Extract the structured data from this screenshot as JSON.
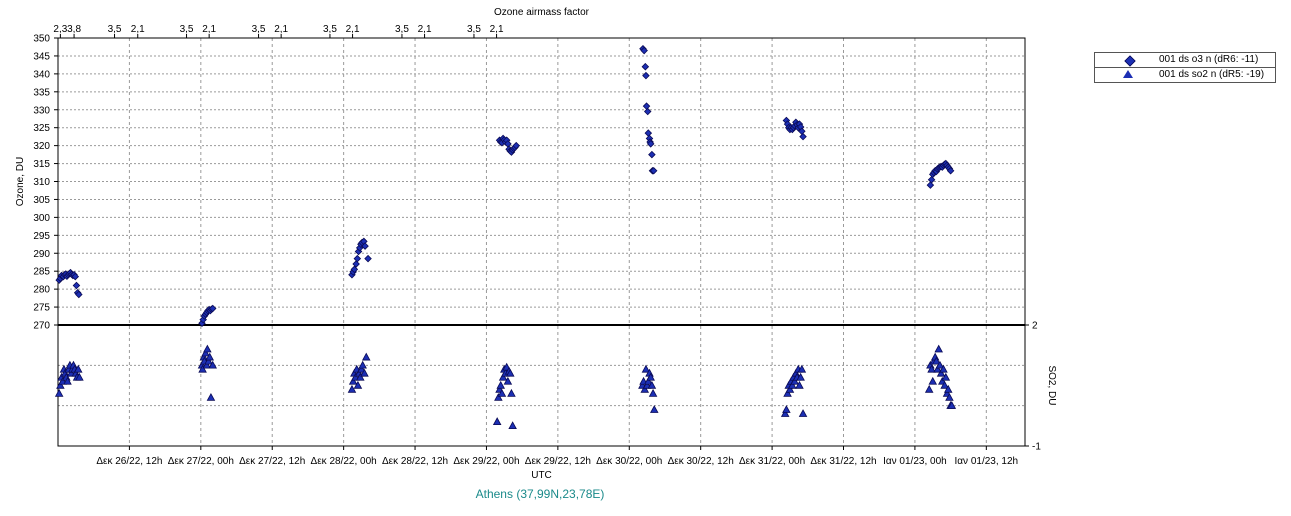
{
  "chart_data": [
    {
      "type": "scatter",
      "title": "Ozone airmass factor",
      "xlabel": "UTC",
      "ylabel": "Ozone, DU",
      "ylim": [
        270,
        350
      ],
      "yticks": [
        270,
        275,
        280,
        285,
        290,
        295,
        300,
        305,
        310,
        315,
        320,
        325,
        330,
        335,
        340,
        345,
        350
      ],
      "xticks": [
        "Δεκ 26/22, 12h",
        "Δεκ 27/22, 00h",
        "Δεκ 27/22, 12h",
        "Δεκ 28/22, 00h",
        "Δεκ 28/22, 12h",
        "Δεκ 29/22, 00h",
        "Δεκ 29/22, 12h",
        "Δεκ 30/22, 00h",
        "Δεκ 30/22, 12h",
        "Δεκ 31/22, 00h",
        "Δεκ 31/22, 12h",
        "Ιαν 01/23, 00h",
        "Ιαν 01/23, 12h"
      ],
      "xtick_hours": [
        12,
        24,
        36,
        48,
        60,
        72,
        84,
        96,
        108,
        120,
        132,
        144,
        156
      ],
      "top_axis": [
        {
          "hours": 0.4,
          "label": "2,3"
        },
        {
          "hours": 2.7,
          "label": "3,8"
        },
        {
          "hours": 9.5,
          "label": "3,5"
        },
        {
          "hours": 13.4,
          "label": "2,1"
        },
        {
          "hours": 21.6,
          "label": "3,5"
        },
        {
          "hours": 25.4,
          "label": "2,1"
        },
        {
          "hours": 33.7,
          "label": "3,5"
        },
        {
          "hours": 37.5,
          "label": "2,1"
        },
        {
          "hours": 45.7,
          "label": "3,5"
        },
        {
          "hours": 49.5,
          "label": "2,1"
        },
        {
          "hours": 57.8,
          "label": "3,5"
        },
        {
          "hours": 61.6,
          "label": "2,1"
        },
        {
          "hours": 69.9,
          "label": "3,5"
        },
        {
          "hours": 73.7,
          "label": "2,1"
        }
      ],
      "grid": true,
      "legend_position": "right",
      "series": [
        {
          "name": "001 ds o3  n (dR6: -11)",
          "marker": "diamond",
          "color": "#1c2fb4",
          "x_hours": [
            0.2,
            0.4,
            0.6,
            0.9,
            1.1,
            1.3,
            1.5,
            1.7,
            1.9,
            2.1,
            2.3,
            2.5,
            2.7,
            2.9,
            3.1,
            3.3,
            3.5,
            24.2,
            24.4,
            24.6,
            24.8,
            25.0,
            25.2,
            25.4,
            25.6,
            25.8,
            26.0,
            49.4,
            49.6,
            49.8,
            50.1,
            50.3,
            50.5,
            50.7,
            50.9,
            51.1,
            51.4,
            51.6,
            52.1,
            74.2,
            74.4,
            74.6,
            74.8,
            75.0,
            75.2,
            75.4,
            75.6,
            75.8,
            76.0,
            76.2,
            76.4,
            76.6,
            76.8,
            77.0,
            98.3,
            98.5,
            98.7,
            98.8,
            98.9,
            99.1,
            99.2,
            99.4,
            99.5,
            99.6,
            99.8,
            99.9,
            100.1,
            122.4,
            122.6,
            122.8,
            123.0,
            123.2,
            123.4,
            123.6,
            123.8,
            124.0,
            124.2,
            124.4,
            124.6,
            124.8,
            125.0,
            125.2,
            146.6,
            146.8,
            147.0,
            147.2,
            147.4,
            147.6,
            147.8,
            148.0,
            148.2,
            148.4,
            148.6,
            148.8,
            149.0,
            149.2,
            149.4,
            149.6,
            149.8,
            150.0
          ],
          "values": [
            282.5,
            283.0,
            283.8,
            283.5,
            284.0,
            284.2,
            283.6,
            284.0,
            284.3,
            284.6,
            284.1,
            283.8,
            284.0,
            283.5,
            281.0,
            279.0,
            278.5,
            270.5,
            271.5,
            272.5,
            273.0,
            273.5,
            274.0,
            274.3,
            274.0,
            274.4,
            274.6,
            284.0,
            284.8,
            285.5,
            287.0,
            288.5,
            290.5,
            291.5,
            292.5,
            293.0,
            293.3,
            292.0,
            288.5,
            321.5,
            321.0,
            320.8,
            322.0,
            321.6,
            321.0,
            321.5,
            320.5,
            319.0,
            318.5,
            318.2,
            318.8,
            319.2,
            319.5,
            320.0,
            347.0,
            346.5,
            342.0,
            339.5,
            331.0,
            329.5,
            323.5,
            322.0,
            321.0,
            320.5,
            317.5,
            313.0,
            313.0,
            327.0,
            326.0,
            325.0,
            324.5,
            325.0,
            324.5,
            325.0,
            325.5,
            326.5,
            325.8,
            325.0,
            326.0,
            325.2,
            324.0,
            322.5,
            309.0,
            310.5,
            312.0,
            312.5,
            313.0,
            312.8,
            313.5,
            313.8,
            314.0,
            314.2,
            314.0,
            314.5,
            314.8,
            315.0,
            314.5,
            314.0,
            313.6,
            313.0
          ]
        }
      ]
    },
    {
      "type": "scatter",
      "xlabel": "UTC",
      "ylabel": "SO2, DU",
      "ylim": [
        -1,
        2
      ],
      "yticks": [
        -1,
        2
      ],
      "grid": true,
      "series": [
        {
          "name": "001 ds so2  n (dR5: -19)",
          "marker": "triangle",
          "color": "#1c2fb4",
          "x_hours": [
            0.2,
            0.4,
            0.6,
            0.8,
            1.0,
            1.2,
            1.4,
            1.6,
            1.8,
            2.0,
            2.2,
            2.4,
            2.6,
            2.8,
            3.0,
            3.2,
            3.4,
            3.6,
            24.2,
            24.3,
            24.5,
            24.6,
            24.8,
            25.0,
            25.1,
            25.3,
            25.5,
            25.7,
            26.0,
            49.4,
            49.6,
            49.8,
            50.0,
            50.2,
            50.4,
            50.6,
            50.8,
            51.0,
            51.2,
            51.5,
            51.8,
            73.8,
            74.0,
            74.2,
            74.4,
            74.6,
            74.8,
            75.0,
            75.2,
            75.4,
            75.6,
            75.8,
            76.0,
            76.2,
            76.4,
            98.2,
            98.4,
            98.6,
            98.8,
            99.0,
            99.2,
            99.4,
            99.6,
            99.8,
            100.0,
            100.2,
            122.2,
            122.4,
            122.6,
            122.8,
            123.0,
            123.2,
            123.4,
            123.6,
            123.8,
            124.0,
            124.2,
            124.4,
            124.6,
            124.8,
            125.0,
            125.2,
            146.4,
            146.6,
            146.8,
            147.0,
            147.2,
            147.4,
            147.6,
            147.8,
            148.0,
            148.2,
            148.4,
            148.6,
            148.8,
            149.0,
            149.2,
            149.4,
            149.6,
            149.8,
            150.0,
            150.2
          ],
          "values": [
            0.3,
            0.5,
            0.7,
            0.6,
            0.9,
            0.8,
            0.7,
            0.6,
            0.9,
            1.0,
            0.8,
            0.9,
            1.0,
            0.9,
            0.8,
            0.7,
            0.9,
            0.7,
            1.0,
            0.9,
            1.2,
            1.1,
            1.3,
            1.0,
            1.4,
            1.1,
            1.2,
            0.2,
            1.0,
            0.4,
            0.6,
            0.8,
            0.7,
            0.9,
            0.5,
            0.8,
            0.7,
            0.9,
            1.0,
            0.8,
            1.2,
            -0.4,
            0.2,
            0.4,
            0.5,
            0.3,
            0.7,
            0.9,
            0.8,
            0.95,
            0.6,
            0.85,
            0.8,
            0.3,
            -0.5,
            0.5,
            0.6,
            0.4,
            0.9,
            0.5,
            0.6,
            0.8,
            0.7,
            0.5,
            0.3,
            -0.1,
            -0.2,
            -0.1,
            0.3,
            0.5,
            0.4,
            0.6,
            0.5,
            0.7,
            0.6,
            0.8,
            0.7,
            0.9,
            0.5,
            0.7,
            0.9,
            -0.2,
            0.4,
            1.0,
            0.9,
            0.6,
            1.1,
            1.2,
            1.1,
            0.9,
            1.4,
            1.0,
            0.8,
            0.6,
            0.9,
            0.5,
            0.7,
            0.3,
            0.4,
            0.2,
            0.0,
            0.0
          ]
        }
      ]
    }
  ],
  "footer": {
    "location": "Athens (37,99N,23,78E)"
  },
  "legend": {
    "o3": "001 ds o3  n (dR6: -11)",
    "so2": "001 ds so2  n (dR5: -19)"
  }
}
